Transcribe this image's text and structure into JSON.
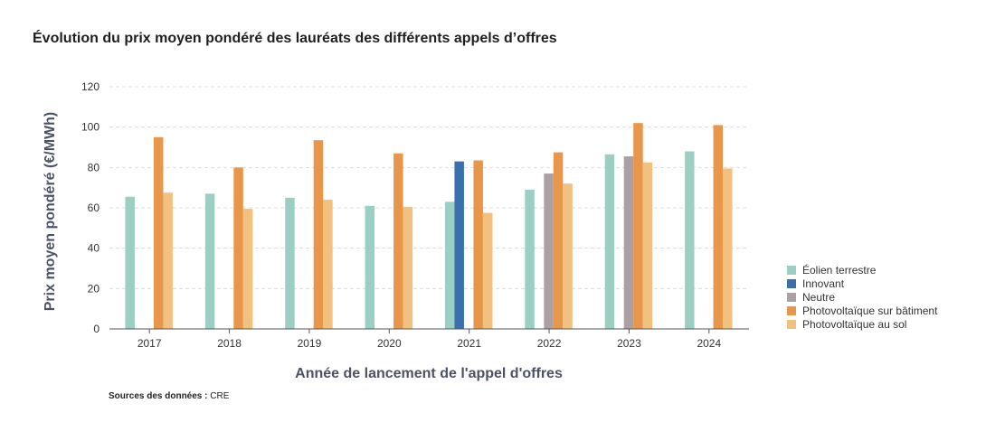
{
  "chart_data": {
    "type": "bar",
    "title": "Évolution du prix moyen pondéré des lauréats des différents appels d’offres",
    "xlabel": "Année de lancement de l'appel d'offres",
    "ylabel": "Prix moyen pondéré (€/MWh)",
    "ylim": [
      0,
      120
    ],
    "yticks": [
      "0",
      "20",
      "40",
      "60",
      "80",
      "100",
      "120"
    ],
    "grid": true,
    "legend_position": "right",
    "categories": [
      "2017",
      "2018",
      "2019",
      "2020",
      "2021",
      "2022",
      "2023",
      "2024"
    ],
    "series": [
      {
        "name": "Éolien terrestre",
        "color": "#9ccfc3",
        "values": [
          65.5,
          67,
          65,
          61,
          63,
          69,
          86.5,
          88
        ]
      },
      {
        "name": "Innovant",
        "color": "#3a70ad",
        "values": [
          null,
          null,
          null,
          null,
          83,
          null,
          null,
          null
        ]
      },
      {
        "name": "Neutre",
        "color": "#aca0a7",
        "values": [
          null,
          null,
          null,
          null,
          null,
          77,
          85.5,
          null
        ]
      },
      {
        "name": "Photovoltaïque sur bâtiment",
        "color": "#e8964a",
        "values": [
          95,
          80,
          93.5,
          87,
          83.5,
          87.5,
          102,
          101
        ]
      },
      {
        "name": "Photovoltaïque au sol",
        "color": "#f2c07f",
        "values": [
          67.5,
          59.5,
          64,
          60.5,
          57.5,
          72,
          82.5,
          79.5
        ]
      }
    ]
  },
  "source": {
    "label": "Sources des données :",
    "value": "CRE"
  }
}
